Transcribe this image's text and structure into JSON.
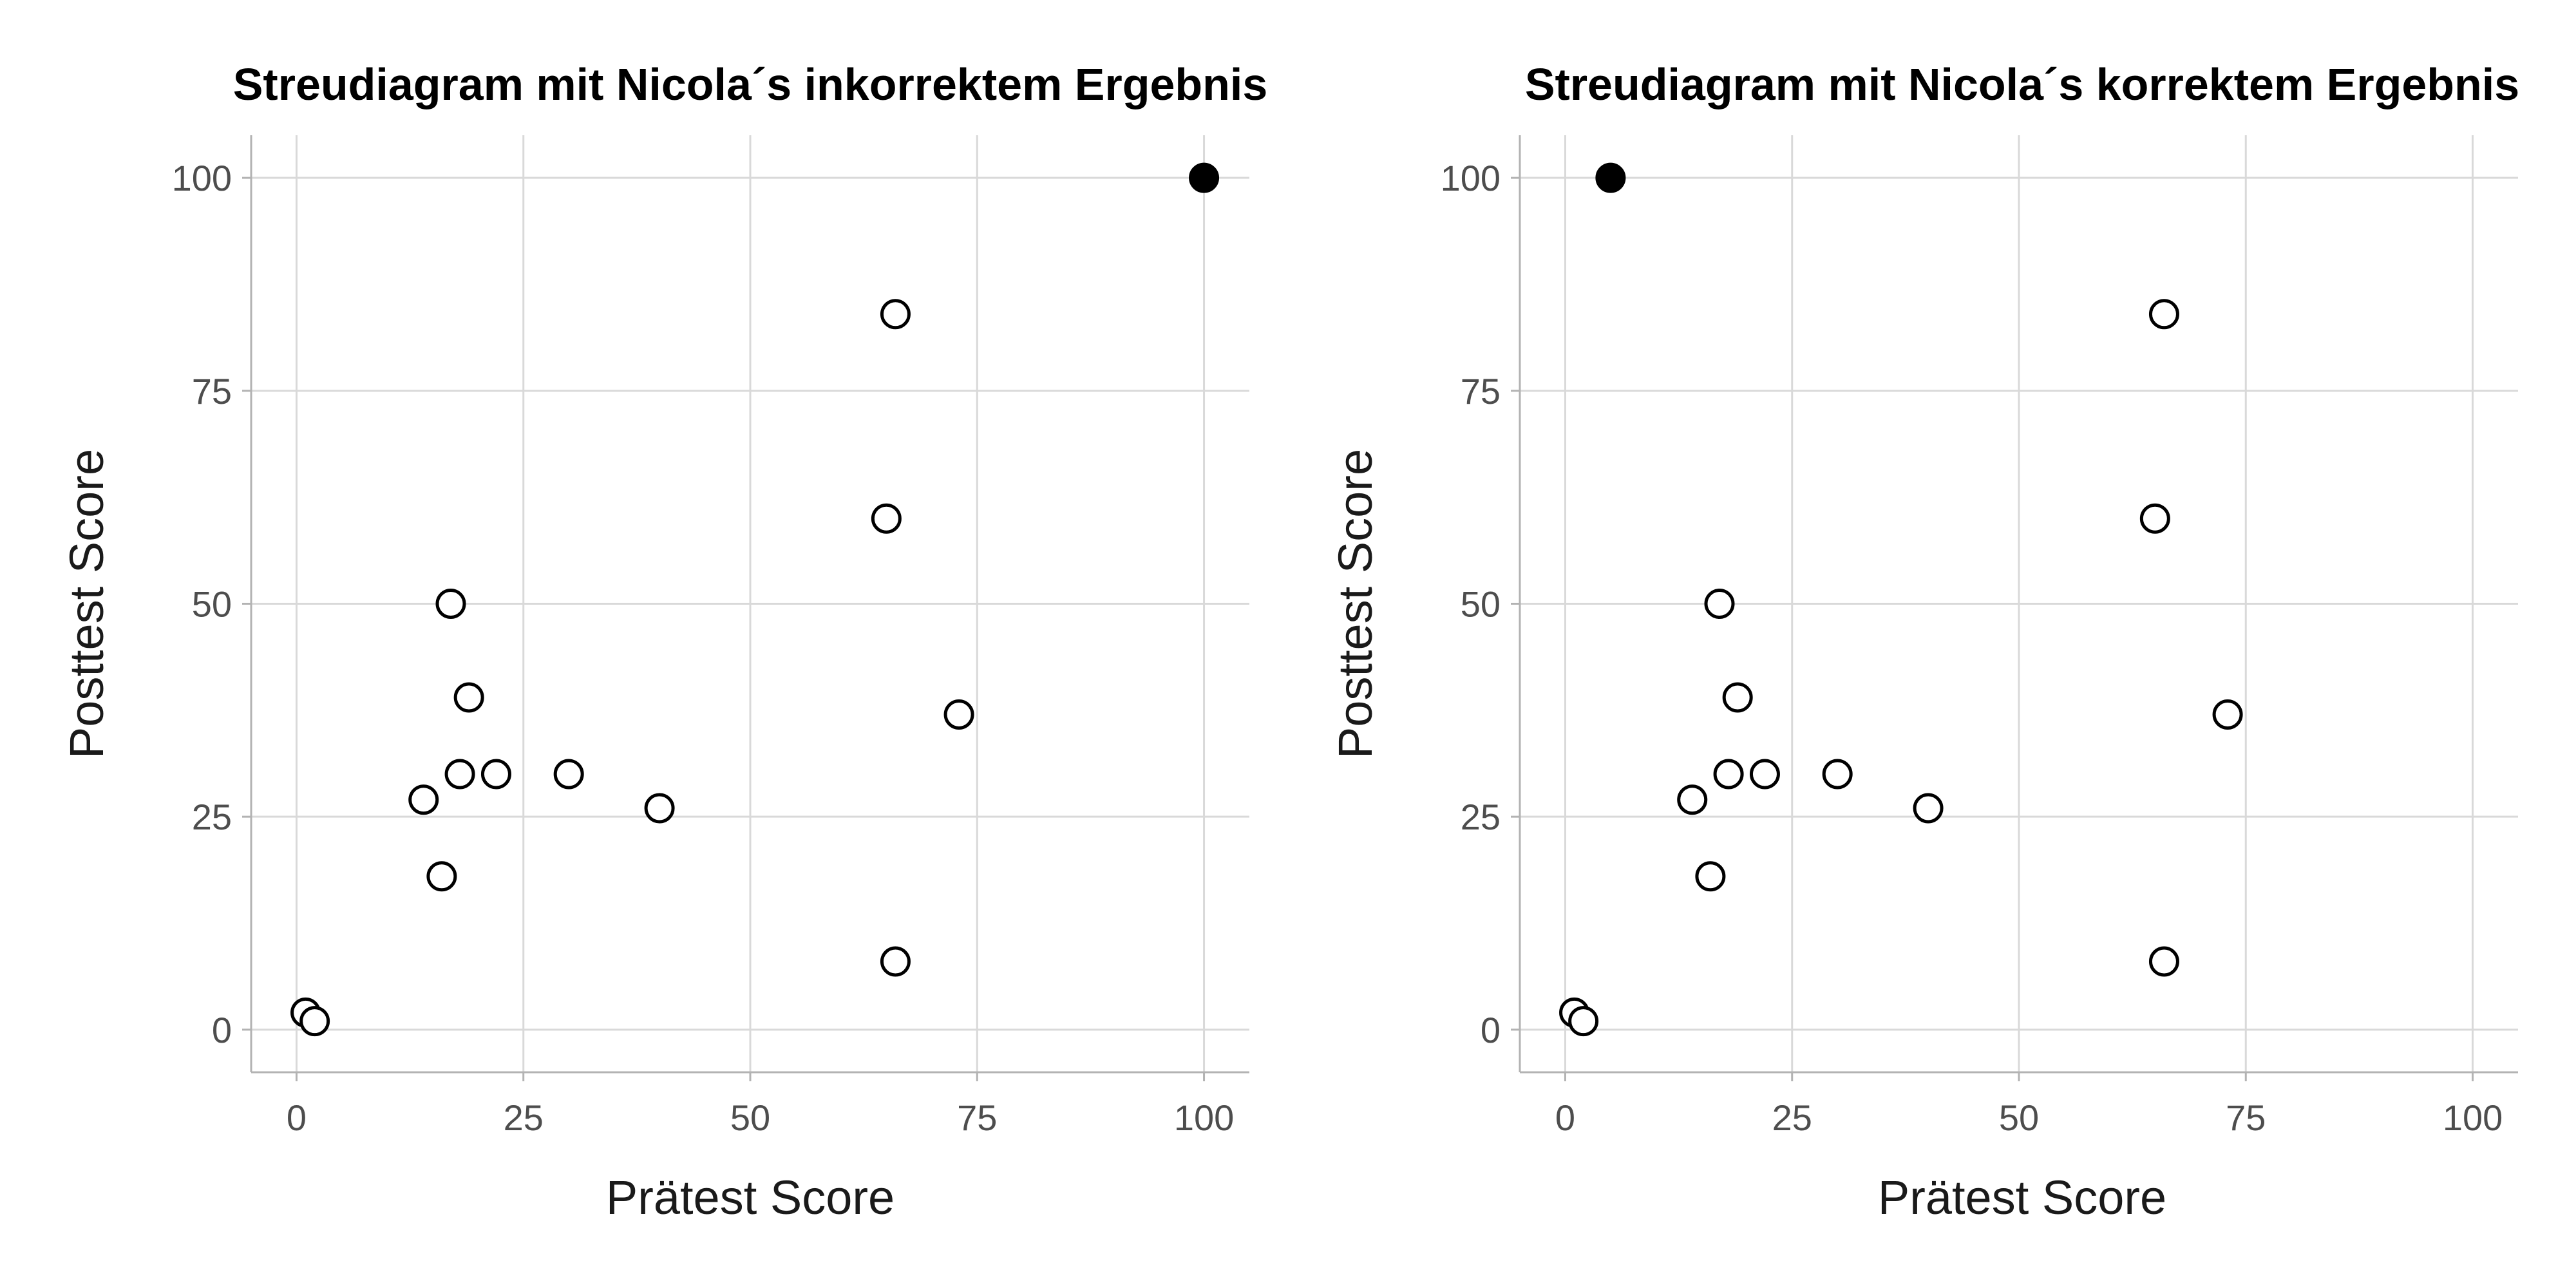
{
  "chart_data": [
    {
      "type": "scatter",
      "title": "Streudiagram mit Nicola´s inkorrektem Ergebnis",
      "xlabel": "Prätest Score",
      "ylabel": "Posttest Score",
      "xlim": [
        -5,
        105
      ],
      "ylim": [
        -5,
        105
      ],
      "xticks": [
        0,
        25,
        50,
        75,
        100
      ],
      "yticks": [
        0,
        25,
        50,
        75,
        100
      ],
      "xtick_labels": [
        "0",
        "25",
        "50",
        "75",
        "100"
      ],
      "ytick_labels": [
        "0",
        "25",
        "50",
        "75",
        "100"
      ],
      "grid": true,
      "points": [
        {
          "x": 1,
          "y": 2,
          "filled": false
        },
        {
          "x": 2,
          "y": 1,
          "filled": false
        },
        {
          "x": 14,
          "y": 27,
          "filled": false
        },
        {
          "x": 16,
          "y": 18,
          "filled": false
        },
        {
          "x": 17,
          "y": 50,
          "filled": false
        },
        {
          "x": 18,
          "y": 30,
          "filled": false
        },
        {
          "x": 19,
          "y": 39,
          "filled": false
        },
        {
          "x": 22,
          "y": 30,
          "filled": false
        },
        {
          "x": 30,
          "y": 30,
          "filled": false
        },
        {
          "x": 40,
          "y": 26,
          "filled": false
        },
        {
          "x": 65,
          "y": 60,
          "filled": false
        },
        {
          "x": 66,
          "y": 84,
          "filled": false
        },
        {
          "x": 66,
          "y": 8,
          "filled": false
        },
        {
          "x": 73,
          "y": 37,
          "filled": false
        },
        {
          "x": 100,
          "y": 100,
          "filled": true
        }
      ]
    },
    {
      "type": "scatter",
      "title": "Streudiagram mit Nicola´s korrektem Ergebnis",
      "xlabel": "Prätest Score",
      "ylabel": "Posttest Score",
      "xlim": [
        -5,
        105
      ],
      "ylim": [
        -5,
        105
      ],
      "xticks": [
        0,
        25,
        50,
        75,
        100
      ],
      "yticks": [
        0,
        25,
        50,
        75,
        100
      ],
      "xtick_labels": [
        "0",
        "25",
        "50",
        "75",
        "100"
      ],
      "ytick_labels": [
        "0",
        "25",
        "50",
        "75",
        "100"
      ],
      "grid": true,
      "points": [
        {
          "x": 1,
          "y": 2,
          "filled": false
        },
        {
          "x": 2,
          "y": 1,
          "filled": false
        },
        {
          "x": 14,
          "y": 27,
          "filled": false
        },
        {
          "x": 16,
          "y": 18,
          "filled": false
        },
        {
          "x": 17,
          "y": 50,
          "filled": false
        },
        {
          "x": 18,
          "y": 30,
          "filled": false
        },
        {
          "x": 19,
          "y": 39,
          "filled": false
        },
        {
          "x": 22,
          "y": 30,
          "filled": false
        },
        {
          "x": 30,
          "y": 30,
          "filled": false
        },
        {
          "x": 40,
          "y": 26,
          "filled": false
        },
        {
          "x": 65,
          "y": 60,
          "filled": false
        },
        {
          "x": 66,
          "y": 84,
          "filled": false
        },
        {
          "x": 66,
          "y": 8,
          "filled": false
        },
        {
          "x": 73,
          "y": 37,
          "filled": false
        },
        {
          "x": 5,
          "y": 100,
          "filled": true
        }
      ]
    }
  ],
  "colors": {
    "point_stroke": "#000000",
    "point_fill_open": "#ffffff",
    "point_fill_highlight": "#000000",
    "grid": "#d9d9d9",
    "axis": "#b3b3b3",
    "tick_text": "#4d4d4d",
    "label_text": "#1a1a1a"
  }
}
